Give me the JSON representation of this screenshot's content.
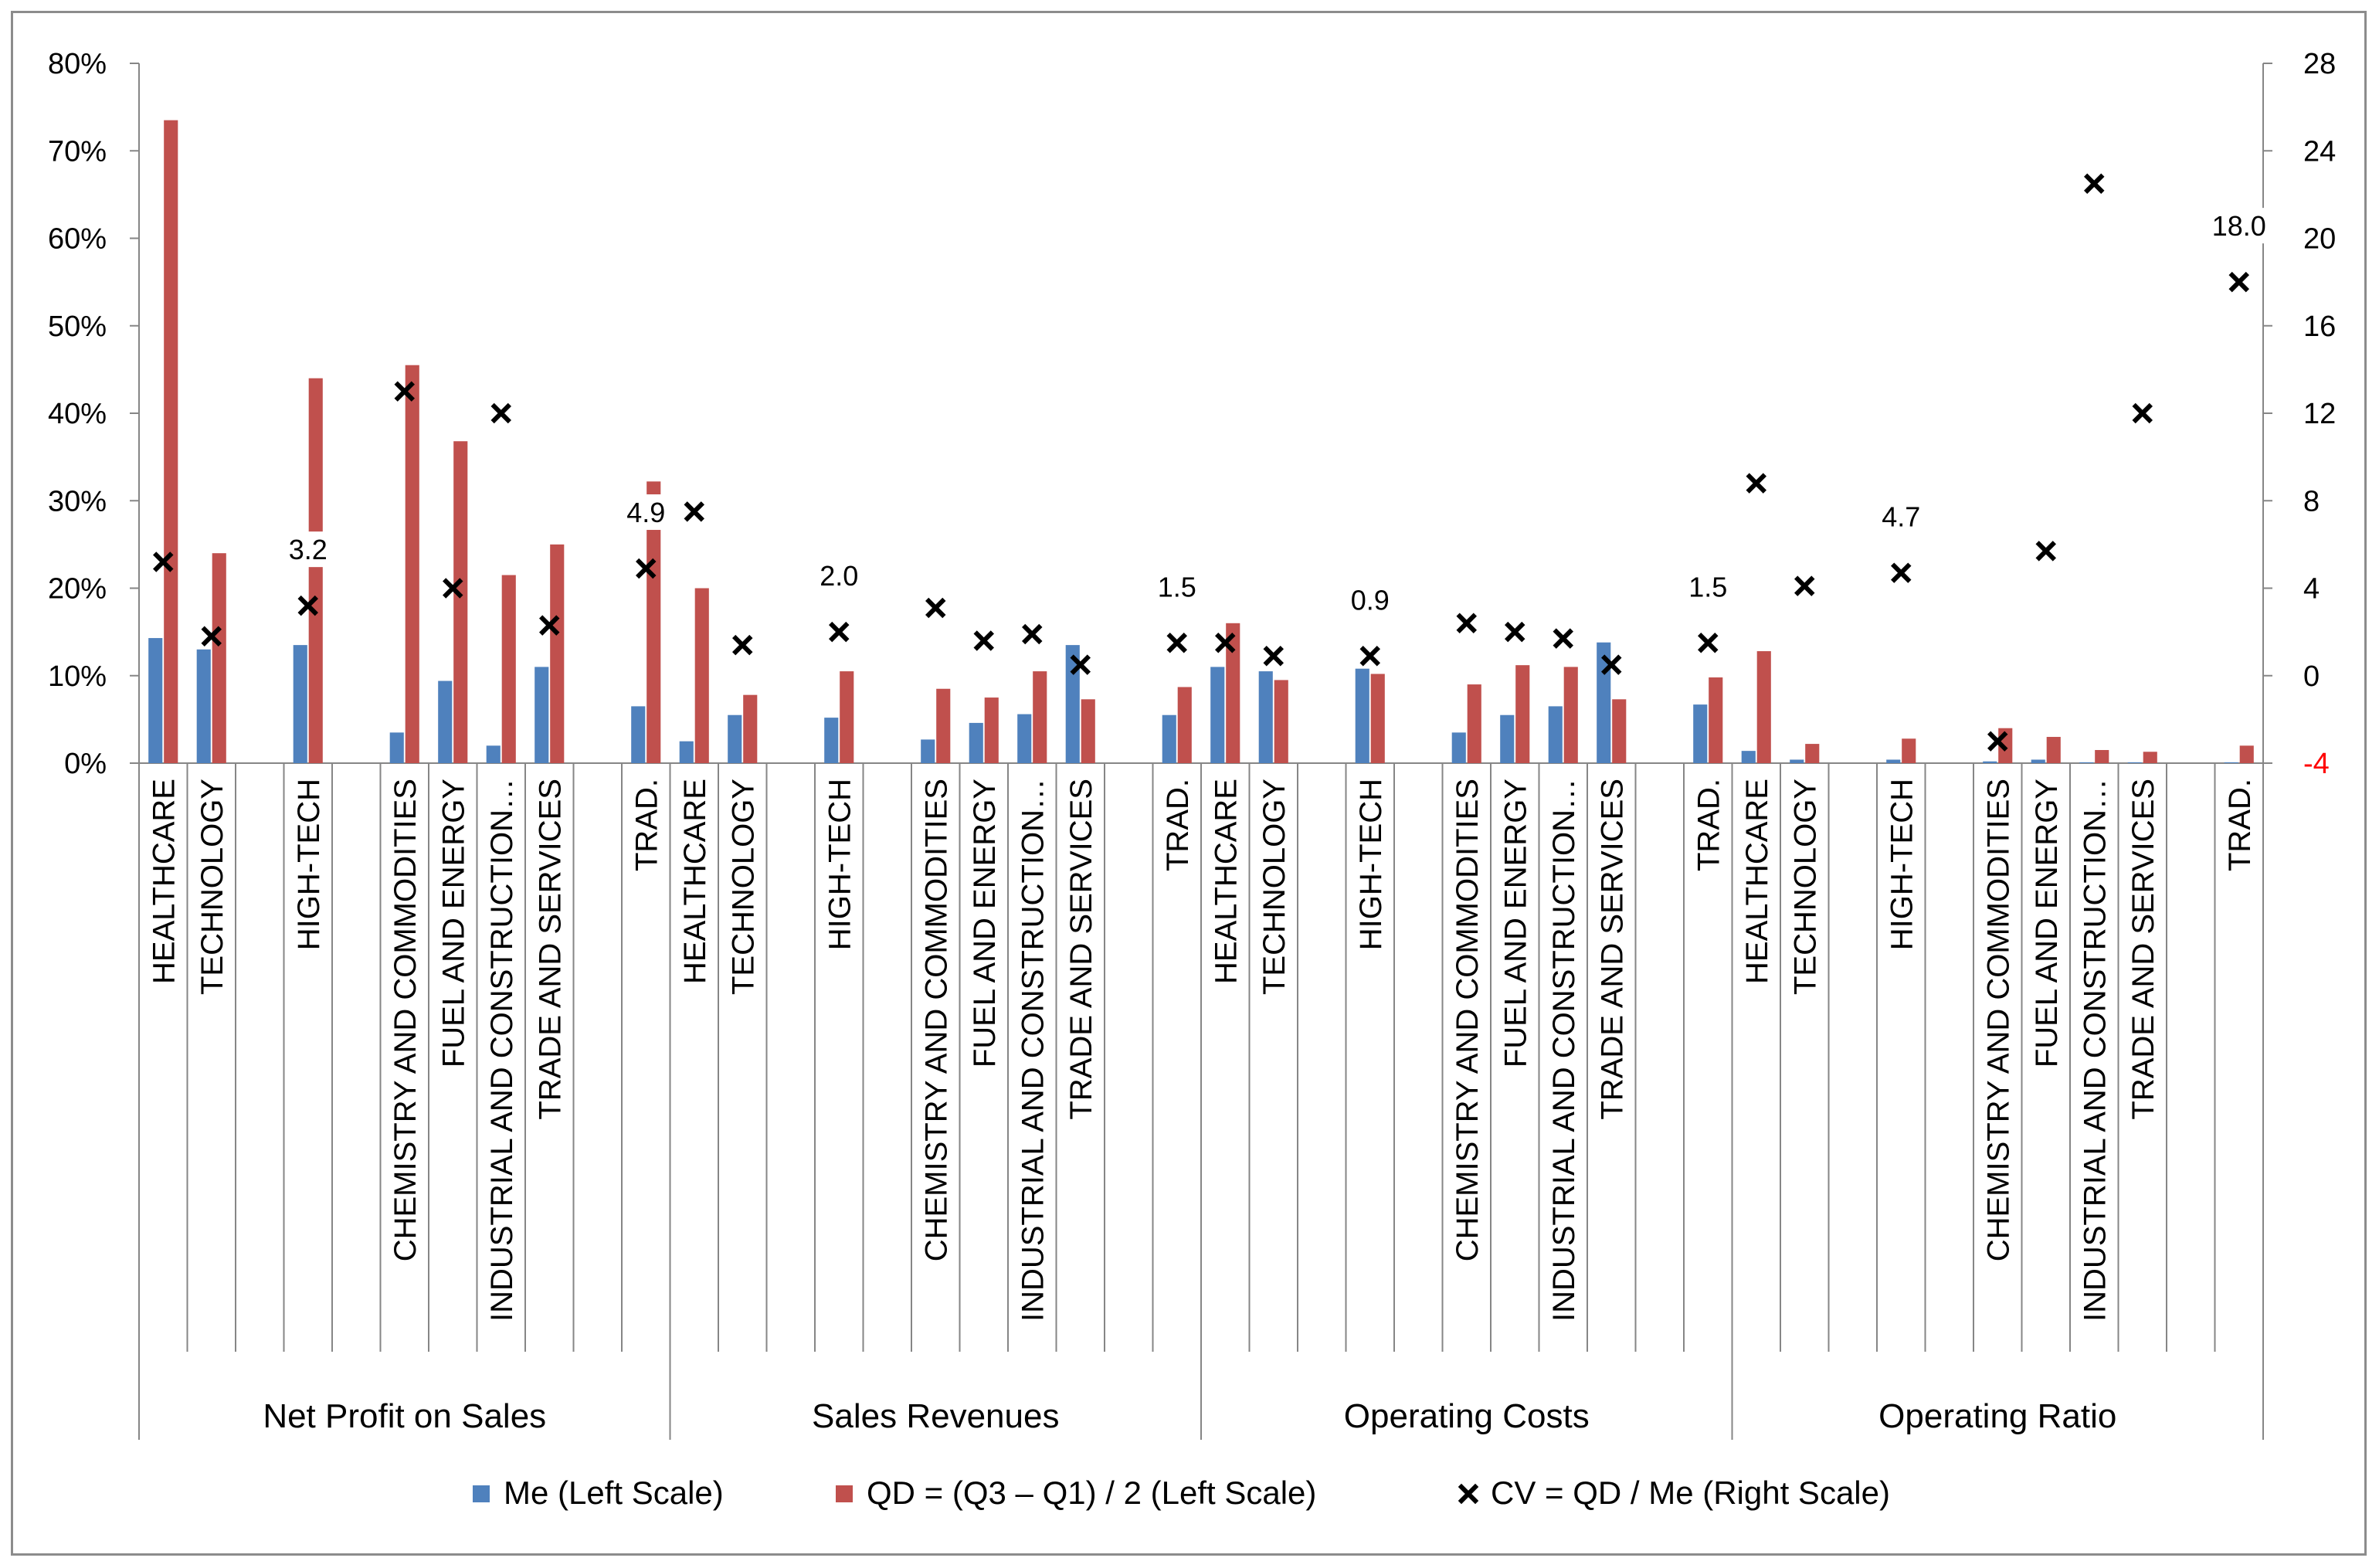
{
  "chart_data": {
    "type": "bar",
    "group_labels": [
      "Net Profit on Sales",
      "Sales Revenues",
      "Operating Costs",
      "Operating Ratio"
    ],
    "categories": [
      "HEALTHCARE",
      "TECHNOLOGY",
      "",
      "HIGH-TECH",
      "",
      "CHEMISTRY AND COMMODITIES",
      "FUEL AND ENERGY",
      "INDUSTRIAL AND CONSTRUCTION…",
      "TRADE AND SERVICES",
      "",
      "TRAD."
    ],
    "left_axis": {
      "ylim": [
        0,
        80
      ],
      "ticks": [
        "0%",
        "10%",
        "20%",
        "30%",
        "40%",
        "50%",
        "60%",
        "70%",
        "80%"
      ]
    },
    "right_axis": {
      "ylim": [
        -4,
        28
      ],
      "ticks": [
        "-4",
        "0",
        "4",
        "8",
        "12",
        "16",
        "20",
        "24",
        "28"
      ],
      "highlight_color": "#ff0000"
    },
    "series": [
      {
        "name": "Me (Left Scale)",
        "color": "#4f81bd",
        "axis": "left",
        "kind": "bar",
        "values": [
          [
            14.3,
            13.0,
            null,
            13.5,
            null,
            3.5,
            9.4,
            2.0,
            11.0,
            null,
            6.5
          ],
          [
            2.5,
            5.5,
            null,
            5.2,
            null,
            2.7,
            4.6,
            5.6,
            13.5,
            null,
            5.5
          ],
          [
            11.0,
            10.5,
            null,
            10.8,
            null,
            3.5,
            5.5,
            6.5,
            13.8,
            null,
            6.7
          ],
          [
            1.4,
            0.4,
            null,
            0.4,
            null,
            0.2,
            0.4,
            0.1,
            0.1,
            null,
            0.1
          ]
        ]
      },
      {
        "name": "QD = (Q3 – Q1) / 2 (Left Scale)",
        "color": "#c0504d",
        "axis": "left",
        "kind": "bar",
        "values": [
          [
            73.5,
            24.0,
            null,
            44.0,
            null,
            45.5,
            36.8,
            21.5,
            25.0,
            null,
            32.2
          ],
          [
            20.0,
            7.8,
            null,
            10.5,
            null,
            8.5,
            7.5,
            10.5,
            7.3,
            null,
            8.7
          ],
          [
            16.0,
            9.5,
            null,
            10.2,
            null,
            9.0,
            11.2,
            11.0,
            7.3,
            null,
            9.8
          ],
          [
            12.8,
            2.2,
            null,
            2.8,
            null,
            4.0,
            3.0,
            1.5,
            1.3,
            null,
            2.0
          ]
        ]
      },
      {
        "name": "CV = QD / Me (Right Scale)",
        "color": "#000000",
        "axis": "right",
        "kind": "marker",
        "values": [
          [
            5.2,
            1.8,
            null,
            3.2,
            null,
            13.0,
            4.0,
            12.0,
            2.3,
            null,
            4.9
          ],
          [
            7.5,
            1.4,
            null,
            2.0,
            null,
            3.1,
            1.6,
            1.9,
            0.5,
            null,
            1.5
          ],
          [
            1.5,
            0.9,
            null,
            0.9,
            null,
            2.4,
            2.0,
            1.7,
            0.5,
            null,
            1.5
          ],
          [
            8.8,
            4.1,
            null,
            4.7,
            null,
            -3.0,
            5.7,
            22.5,
            12.0,
            null,
            18.0
          ]
        ]
      }
    ],
    "data_labels": [
      {
        "group": 0,
        "index": 3,
        "text": "3.2"
      },
      {
        "group": 0,
        "index": 10,
        "text": "4.9"
      },
      {
        "group": 1,
        "index": 3,
        "text": "2.0"
      },
      {
        "group": 1,
        "index": 10,
        "text": "1.5"
      },
      {
        "group": 2,
        "index": 3,
        "text": "0.9"
      },
      {
        "group": 2,
        "index": 10,
        "text": "1.5"
      },
      {
        "group": 3,
        "index": 3,
        "text": "4.7"
      },
      {
        "group": 3,
        "index": 10,
        "text": "18.0"
      }
    ],
    "grid": false,
    "legend_position": "bottom"
  }
}
